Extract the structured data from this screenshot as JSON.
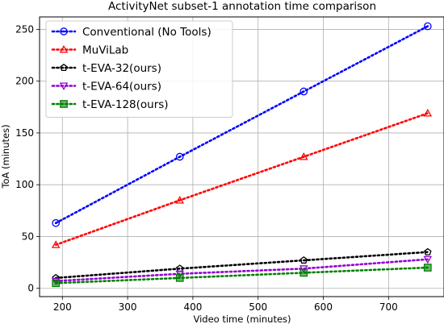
{
  "chart_data": {
    "type": "line",
    "title": "ActivityNet subset-1 annotation time comparison",
    "xlabel": "Video time (minutes)",
    "ylabel": "ToA (minutes)",
    "xlim": [
      165,
      785
    ],
    "ylim": [
      -8,
      262
    ],
    "x_ticks": [
      200,
      300,
      400,
      500,
      600,
      700
    ],
    "y_ticks": [
      0,
      50,
      100,
      150,
      200,
      250
    ],
    "grid": true,
    "legend_position": "top-left",
    "x": [
      190,
      380,
      570,
      760
    ],
    "series": [
      {
        "name": "Conventional (No Tools)",
        "values": [
          63,
          127,
          190,
          253
        ],
        "color": "#0000ff",
        "marker": "circle"
      },
      {
        "name": "MuViLab",
        "values": [
          42,
          85,
          127,
          169
        ],
        "color": "#ff0000",
        "marker": "triangle-up"
      },
      {
        "name": "t-EVA-32(ours)",
        "values": [
          10,
          19,
          27,
          35
        ],
        "color": "#000000",
        "marker": "pentagon"
      },
      {
        "name": "t-EVA-64(ours)",
        "values": [
          7,
          14,
          19,
          28
        ],
        "color": "#9400d3",
        "marker": "triangle-down"
      },
      {
        "name": "t-EVA-128(ours)",
        "values": [
          5,
          10,
          15,
          20
        ],
        "color": "#008000",
        "marker": "square"
      }
    ]
  }
}
